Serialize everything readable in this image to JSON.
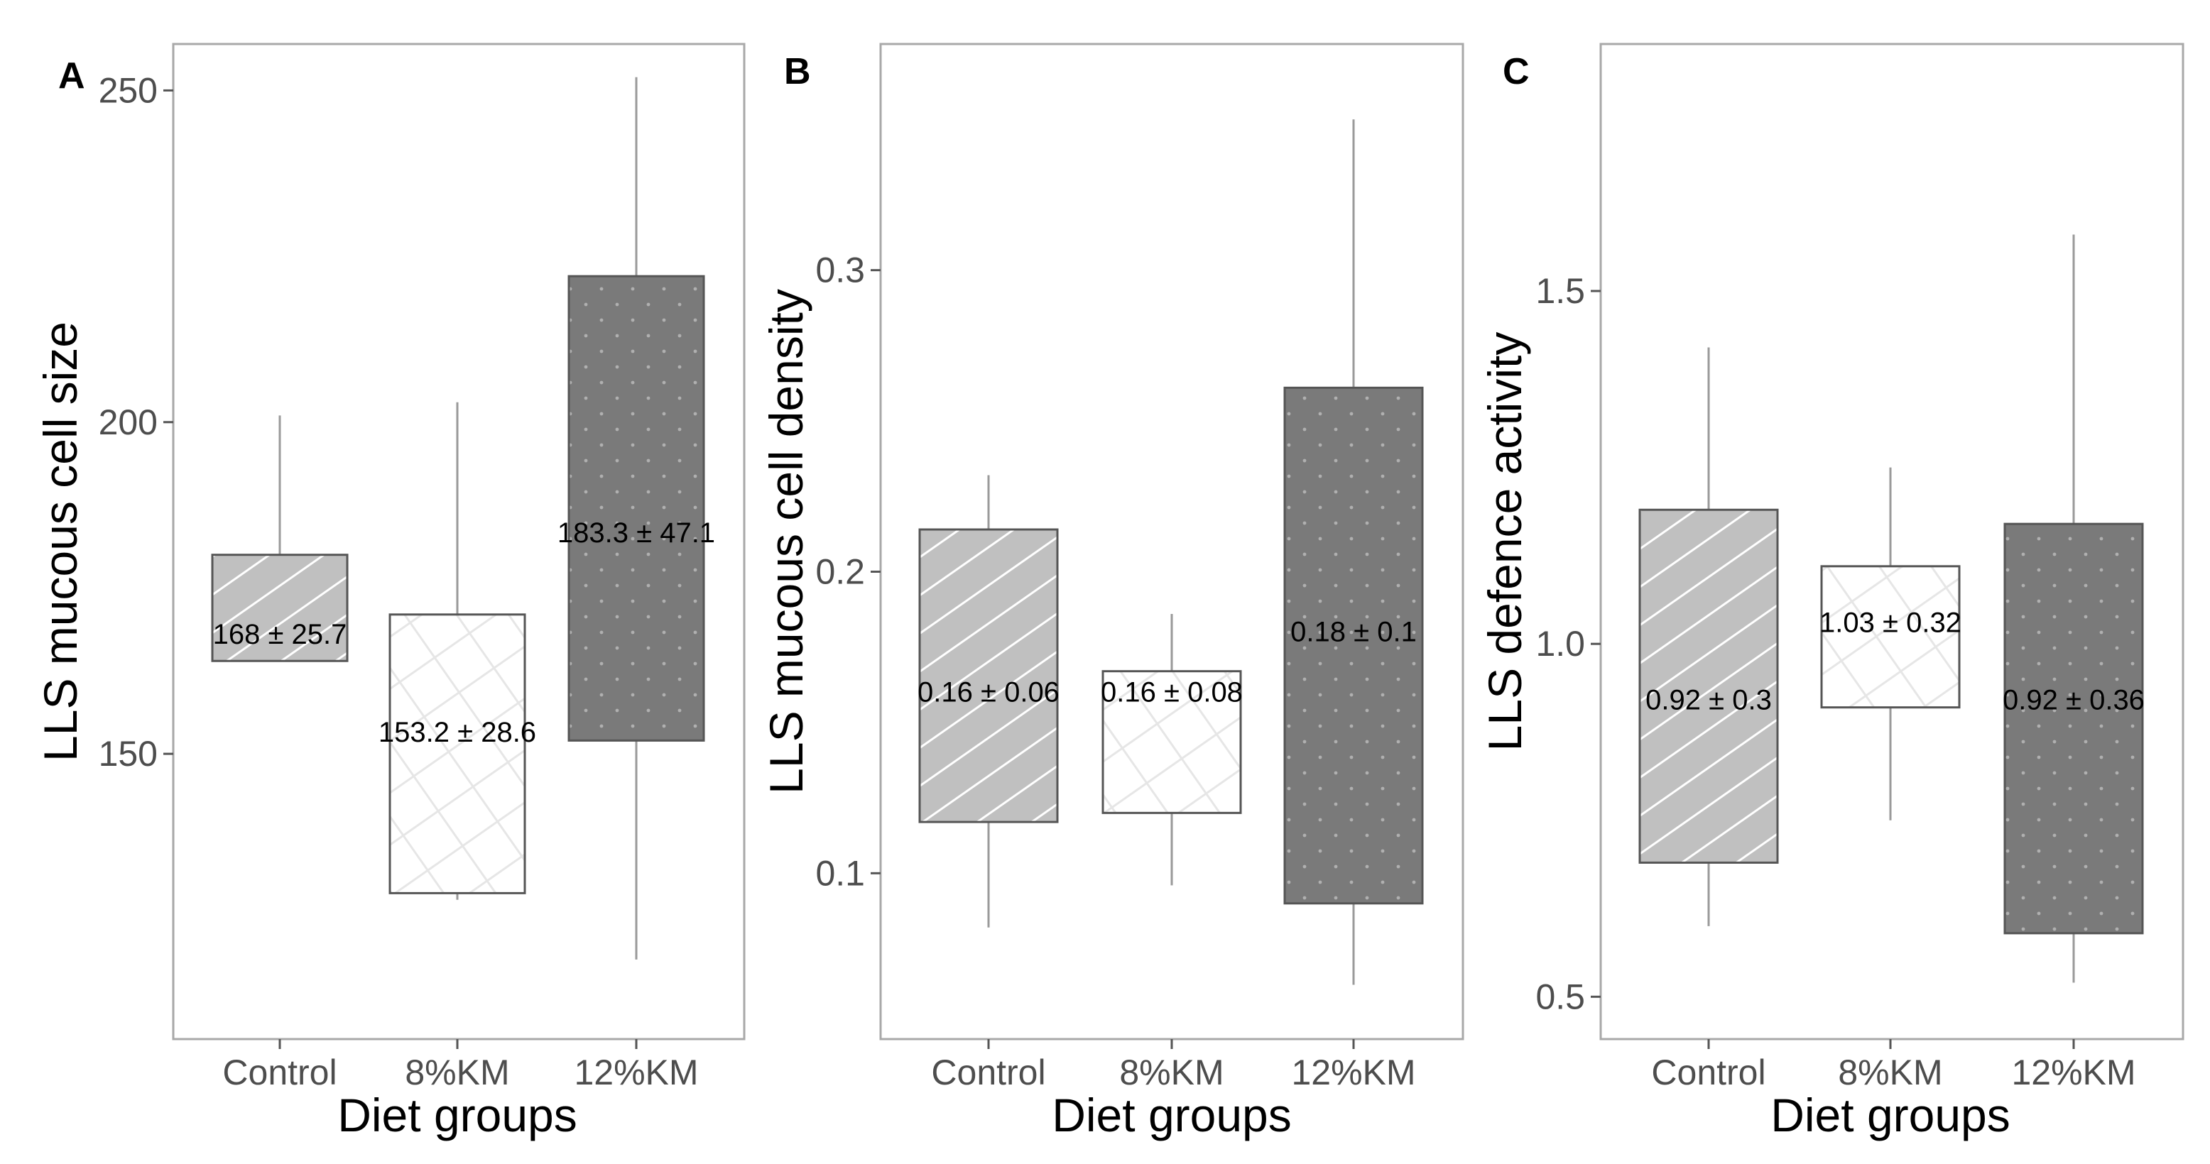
{
  "figure": {
    "xlabel_common": "Diet groups"
  },
  "colors": {
    "control_fill": "#c0c0c0",
    "km8_fill": "#ffffff",
    "km12_fill": "#7a7a7a",
    "box_stroke": "#555555",
    "whisker": "#9a9a9a",
    "panel_border": "#a8a8a8",
    "hatch_light": "#ffffff",
    "hatch_faint": "#e6e6e6",
    "dot": "#b0b0b0"
  },
  "chart_data": [
    {
      "panel": "A",
      "type": "box",
      "title": "",
      "xlabel": "Diet groups",
      "ylabel": "LLS mucous cell size",
      "categories": [
        "Control",
        "8%KM",
        "12%KM"
      ],
      "yticks": [
        150,
        200,
        250
      ],
      "ytick_labels": [
        "150",
        "200",
        "250"
      ],
      "ylim": [
        107,
        257
      ],
      "boxes": [
        {
          "whisker_low": 164,
          "q1": 164,
          "q3": 180,
          "whisker_high": 201,
          "label": "168 ± 25.7",
          "label_y": 168
        },
        {
          "whisker_low": 128,
          "q1": 129,
          "q3": 171,
          "whisker_high": 203,
          "label": "153.2 ± 28.6",
          "label_y": 153.2
        },
        {
          "whisker_low": 119,
          "q1": 152,
          "q3": 222,
          "whisker_high": 252,
          "label": "183.3 ± 47.1",
          "label_y": 183.3
        }
      ]
    },
    {
      "panel": "B",
      "type": "box",
      "title": "",
      "xlabel": "Diet groups",
      "ylabel": "LLS mucous cell density",
      "categories": [
        "Control",
        "8%KM",
        "12%KM"
      ],
      "yticks": [
        0.1,
        0.2,
        0.3
      ],
      "ytick_labels": [
        "0.1",
        "0.2",
        "0.3"
      ],
      "ylim": [
        0.045,
        0.375
      ],
      "boxes": [
        {
          "whisker_low": 0.082,
          "q1": 0.117,
          "q3": 0.214,
          "whisker_high": 0.232,
          "label": "0.16 ± 0.06",
          "label_y": 0.16
        },
        {
          "whisker_low": 0.096,
          "q1": 0.12,
          "q3": 0.167,
          "whisker_high": 0.186,
          "label": "0.16 ± 0.08",
          "label_y": 0.16
        },
        {
          "whisker_low": 0.063,
          "q1": 0.09,
          "q3": 0.261,
          "whisker_high": 0.35,
          "label": "0.18 ± 0.1",
          "label_y": 0.18
        }
      ]
    },
    {
      "panel": "C",
      "type": "box",
      "title": "",
      "xlabel": "Diet groups",
      "ylabel": "LLS defence activity",
      "categories": [
        "Control",
        "8%KM",
        "12%KM"
      ],
      "yticks": [
        0.5,
        1.0,
        1.5
      ],
      "ytick_labels": [
        "0.5",
        "1.0",
        "1.5"
      ],
      "ylim": [
        0.44,
        1.85
      ],
      "boxes": [
        {
          "whisker_low": 0.6,
          "q1": 0.69,
          "q3": 1.19,
          "whisker_high": 1.42,
          "label": "0.92 ± 0.3",
          "label_y": 0.92
        },
        {
          "whisker_low": 0.75,
          "q1": 0.91,
          "q3": 1.11,
          "whisker_high": 1.25,
          "label": "1.03 ± 0.32",
          "label_y": 1.03
        },
        {
          "whisker_low": 0.52,
          "q1": 0.59,
          "q3": 1.17,
          "whisker_high": 1.58,
          "label": "0.92 ± 0.36",
          "label_y": 0.92
        }
      ]
    }
  ]
}
